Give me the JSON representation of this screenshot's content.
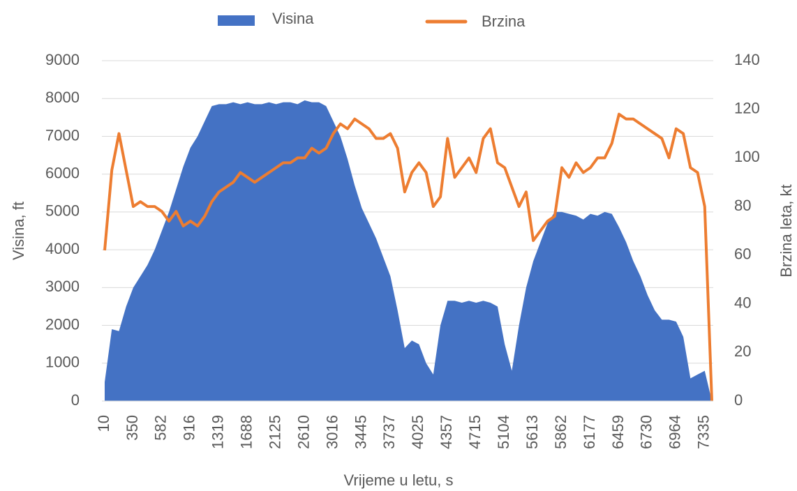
{
  "chart_data": {
    "type": "area_line",
    "xlabel": "Vrijeme u letu, s",
    "ylabel": "Visina, ft",
    "y2label": "Brzina leta, kt",
    "categories": [
      "10",
      null,
      null,
      null,
      "350",
      null,
      null,
      null,
      "582",
      null,
      null,
      null,
      "916",
      null,
      null,
      null,
      "1319",
      null,
      null,
      null,
      "1688",
      null,
      null,
      null,
      "2125",
      null,
      null,
      null,
      "2610",
      null,
      null,
      null,
      "3016",
      null,
      null,
      null,
      "3445",
      null,
      null,
      null,
      "3737",
      null,
      null,
      null,
      "4025",
      null,
      null,
      null,
      "4357",
      null,
      null,
      null,
      "4715",
      null,
      null,
      null,
      "5104",
      null,
      null,
      null,
      "5613",
      null,
      null,
      null,
      "5862",
      null,
      null,
      null,
      "6177",
      null,
      null,
      null,
      "6459",
      null,
      null,
      null,
      "6730",
      null,
      null,
      null,
      "6964",
      null,
      null,
      null,
      "7335",
      null
    ],
    "series": [
      {
        "name": "Visina",
        "type": "area",
        "color": "#4472c4",
        "values": [
          500,
          1900,
          1850,
          2500,
          3000,
          3300,
          3600,
          4000,
          4500,
          5000,
          5600,
          6200,
          6700,
          7000,
          7400,
          7800,
          7850,
          7850,
          7900,
          7850,
          7900,
          7850,
          7850,
          7900,
          7850,
          7900,
          7900,
          7850,
          7950,
          7900,
          7900,
          7800,
          7400,
          7000,
          6400,
          5700,
          5100,
          4700,
          4300,
          3800,
          3300,
          2400,
          1400,
          1600,
          1500,
          1000,
          700,
          2000,
          2650,
          2650,
          2600,
          2650,
          2600,
          2650,
          2600,
          2500,
          1500,
          800,
          2000,
          3000,
          3700,
          4200,
          4700,
          5000,
          5000,
          4950,
          4900,
          4800,
          4950,
          4900,
          5000,
          4950,
          4600,
          4200,
          3700,
          3300,
          2800,
          2400,
          2150,
          2150,
          2100,
          1700,
          600,
          700,
          800,
          0
        ]
      },
      {
        "name": "Brzina",
        "type": "line",
        "axis": "y2",
        "color": "#ed7d31",
        "values": [
          62,
          95,
          110,
          95,
          80,
          82,
          80,
          80,
          78,
          74,
          78,
          72,
          74,
          72,
          76,
          82,
          86,
          88,
          90,
          94,
          92,
          90,
          92,
          94,
          96,
          98,
          98,
          100,
          100,
          104,
          102,
          104,
          110,
          114,
          112,
          116,
          114,
          112,
          108,
          108,
          110,
          104,
          86,
          94,
          98,
          94,
          80,
          84,
          108,
          92,
          96,
          100,
          94,
          108,
          112,
          98,
          96,
          88,
          80,
          86,
          66,
          70,
          74,
          76,
          96,
          92,
          98,
          94,
          96,
          100,
          100,
          106,
          118,
          116,
          116,
          114,
          112,
          110,
          108,
          100,
          112,
          110,
          96,
          94,
          80,
          0
        ]
      }
    ],
    "ylim": [
      0,
      9000
    ],
    "yticks": [
      0,
      1000,
      2000,
      3000,
      4000,
      5000,
      6000,
      7000,
      8000,
      9000
    ],
    "y2lim": [
      0,
      140
    ],
    "y2ticks": [
      0,
      20,
      40,
      60,
      80,
      100,
      120,
      140
    ],
    "grid": true,
    "legend": "top"
  }
}
